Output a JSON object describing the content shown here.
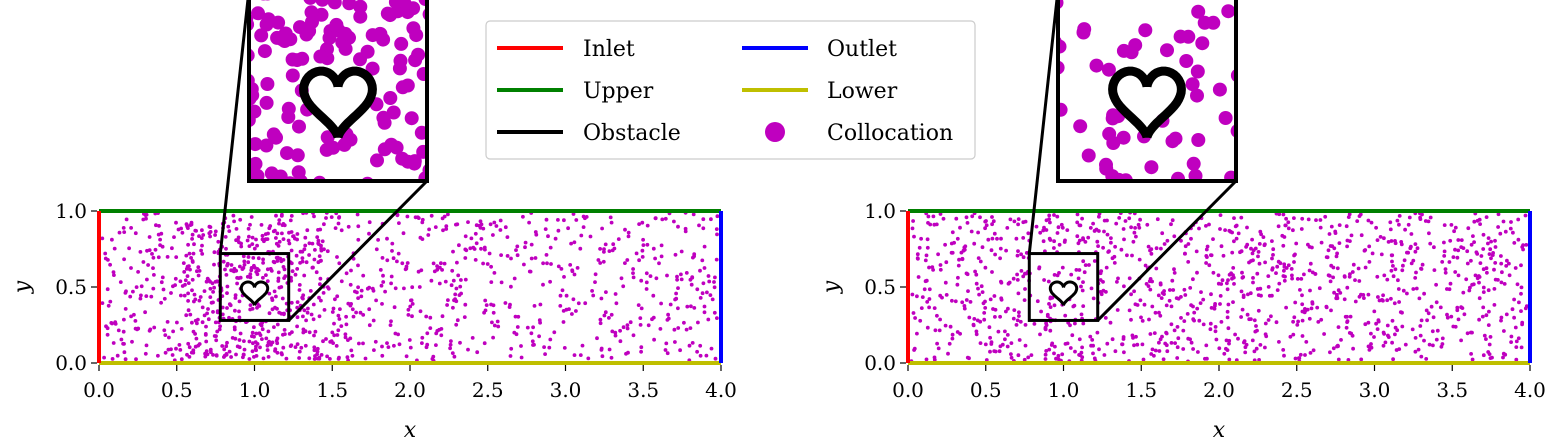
{
  "legend": {
    "items": [
      {
        "label": "Inlet",
        "color": "#ff0000",
        "kind": "line"
      },
      {
        "label": "Upper",
        "color": "#008000",
        "kind": "line"
      },
      {
        "label": "Obstacle",
        "color": "#000000",
        "kind": "line"
      },
      {
        "label": "Outlet",
        "color": "#0000ff",
        "kind": "line"
      },
      {
        "label": "Lower",
        "color": "#bfbf00",
        "kind": "line"
      },
      {
        "label": "Collocation",
        "color": "#bf00bf",
        "kind": "marker"
      }
    ]
  },
  "chart_data": [
    {
      "type": "scatter",
      "title": "",
      "xlabel": "x",
      "ylabel": "y",
      "xlim": [
        0,
        4
      ],
      "ylim": [
        0,
        1
      ],
      "xticks": [
        "0.0",
        "0.5",
        "1.0",
        "1.5",
        "2.0",
        "2.5",
        "3.0",
        "3.5",
        "4.0"
      ],
      "yticks": [
        "0.0",
        "0.5",
        "1.0"
      ],
      "boundaries": {
        "inlet": {
          "x": 0,
          "y": [
            0,
            1
          ],
          "color": "#ff0000"
        },
        "outlet": {
          "x": 4,
          "y": [
            0,
            1
          ],
          "color": "#0000ff"
        },
        "upper": {
          "y": 1,
          "x": [
            0,
            4
          ],
          "color": "#008000"
        },
        "lower": {
          "y": 0,
          "x": [
            0,
            4
          ],
          "color": "#bfbf00"
        }
      },
      "obstacle": {
        "shape": "heart",
        "center": [
          1.0,
          0.47
        ],
        "color": "#000000"
      },
      "inset": {
        "xlim": [
          0.78,
          1.22
        ],
        "ylim": [
          0.28,
          0.72
        ]
      },
      "collocation": {
        "color": "#bf00bf",
        "count": 1200,
        "distribution": "denser near obstacle",
        "seed": 11
      }
    },
    {
      "type": "scatter",
      "title": "",
      "xlabel": "x",
      "ylabel": "y",
      "xlim": [
        0,
        4
      ],
      "ylim": [
        0,
        1
      ],
      "xticks": [
        "0.0",
        "0.5",
        "1.0",
        "1.5",
        "2.0",
        "2.5",
        "3.0",
        "3.5",
        "4.0"
      ],
      "yticks": [
        "0.0",
        "0.5",
        "1.0"
      ],
      "boundaries": {
        "inlet": {
          "x": 0,
          "y": [
            0,
            1
          ],
          "color": "#ff0000"
        },
        "outlet": {
          "x": 4,
          "y": [
            0,
            1
          ],
          "color": "#0000ff"
        },
        "upper": {
          "y": 1,
          "x": [
            0,
            4
          ],
          "color": "#008000"
        },
        "lower": {
          "y": 0,
          "x": [
            0,
            4
          ],
          "color": "#bfbf00"
        }
      },
      "obstacle": {
        "shape": "heart",
        "center": [
          1.0,
          0.47
        ],
        "color": "#000000"
      },
      "inset": {
        "xlim": [
          0.78,
          1.22
        ],
        "ylim": [
          0.28,
          0.72
        ]
      },
      "collocation": {
        "color": "#bf00bf",
        "count": 1200,
        "distribution": "uniform",
        "seed": 29
      }
    }
  ]
}
